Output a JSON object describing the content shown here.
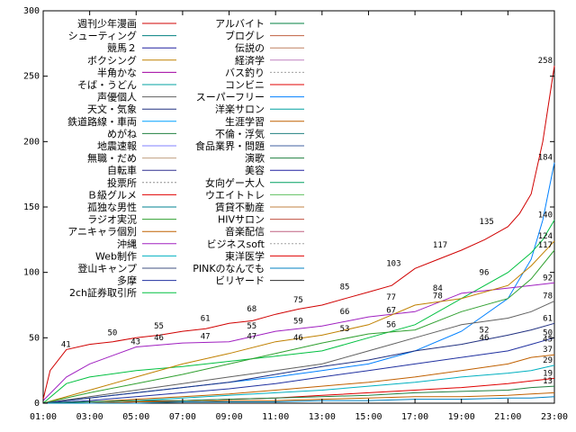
{
  "chart_data": {
    "type": "line",
    "title": "",
    "xlabel": "",
    "ylabel": "",
    "ylim": [
      0,
      300
    ],
    "xlim_hours": [
      1,
      23
    ],
    "x_ticks": [
      "01:00",
      "03:00",
      "05:00",
      "07:00",
      "09:00",
      "11:00",
      "13:00",
      "15:00",
      "17:00",
      "19:00",
      "21:00",
      "23:00"
    ],
    "y_ticks": [
      "0",
      "50",
      "100",
      "150",
      "200",
      "250",
      "300"
    ],
    "grid": false,
    "legend_position": "top-left, two columns",
    "legend_left": [
      {
        "name": "週刊少年漫画",
        "color": "#d00000",
        "dash": false
      },
      {
        "name": "シューティング",
        "color": "#008080",
        "dash": false
      },
      {
        "name": "競馬２",
        "color": "#2020a0",
        "dash": false
      },
      {
        "name": "ボクシング",
        "color": "#c08000",
        "dash": false
      },
      {
        "name": "半角かな",
        "color": "#a000a0",
        "dash": false
      },
      {
        "name": "そば・うどん",
        "color": "#00a0a0",
        "dash": false
      },
      {
        "name": "声優個人",
        "color": "#606060",
        "dash": false
      },
      {
        "name": "天文・気象",
        "color": "#203080",
        "dash": false
      },
      {
        "name": "鉄道路線・車両",
        "color": "#00a0ff",
        "dash": false
      },
      {
        "name": "めがね",
        "color": "#208040",
        "dash": false
      },
      {
        "name": "地震速報",
        "color": "#8080ff",
        "dash": false
      },
      {
        "name": "無職・だめ",
        "color": "#c0a080",
        "dash": false
      },
      {
        "name": "自転車",
        "color": "#303090",
        "dash": false
      },
      {
        "name": "投票所",
        "color": "#909090",
        "dash": true
      },
      {
        "name": "Ｂ級グルメ",
        "color": "#e00000",
        "dash": false
      },
      {
        "name": "孤独な男性",
        "color": "#008090",
        "dash": false
      },
      {
        "name": "ラジオ実況",
        "color": "#30a030",
        "dash": false
      },
      {
        "name": "アニキャラ個別",
        "color": "#c06000",
        "dash": false
      },
      {
        "name": "沖縄",
        "color": "#a020c0",
        "dash": false
      },
      {
        "name": "Web制作",
        "color": "#00b0c0",
        "dash": false
      },
      {
        "name": "登山キャンプ",
        "color": "#405080",
        "dash": false
      },
      {
        "name": "多摩",
        "color": "#2030a0",
        "dash": false
      },
      {
        "name": "2ch証券取引所",
        "color": "#00c040",
        "dash": false
      }
    ],
    "legend_right": [
      {
        "name": "アルバイト",
        "color": "#008040",
        "dash": false
      },
      {
        "name": "ブログレ",
        "color": "#c06040",
        "dash": false
      },
      {
        "name": "伝説の",
        "color": "#c08060",
        "dash": false
      },
      {
        "name": "経済学",
        "color": "#c080c0",
        "dash": false
      },
      {
        "name": "バス釣り",
        "color": "#a0a0a0",
        "dash": true
      },
      {
        "name": "コンビニ",
        "color": "#e00000",
        "dash": false
      },
      {
        "name": "スーパーフリー",
        "color": "#0080ff",
        "dash": false
      },
      {
        "name": "洋楽サロン",
        "color": "#00a0a0",
        "dash": false
      },
      {
        "name": "生涯学習",
        "color": "#c06000",
        "dash": false
      },
      {
        "name": "不倫・浮気",
        "color": "#208080",
        "dash": false
      },
      {
        "name": "食品業界・問題",
        "color": "#4060a0",
        "dash": false
      },
      {
        "name": "演歌",
        "color": "#208040",
        "dash": false
      },
      {
        "name": "美容",
        "color": "#2020a0",
        "dash": false
      },
      {
        "name": "女向ゲー大人",
        "color": "#00a060",
        "dash": false
      },
      {
        "name": "ウエイトトレ",
        "color": "#60c060",
        "dash": false
      },
      {
        "name": "賃貸不動産",
        "color": "#c08040",
        "dash": false
      },
      {
        "name": "HIVサロン",
        "color": "#c05040",
        "dash": false
      },
      {
        "name": "音楽配信",
        "color": "#c06080",
        "dash": false
      },
      {
        "name": "ビジネスsoft",
        "color": "#a0a0a0",
        "dash": true
      },
      {
        "name": "東洋医学",
        "color": "#e00000",
        "dash": false
      },
      {
        "name": "PINKのなんでも",
        "color": "#0080c0",
        "dash": false
      },
      {
        "name": "ビリヤード",
        "color": "#303030",
        "dash": false
      }
    ],
    "series": [
      {
        "name": "週刊少年漫画",
        "color": "#d00000",
        "x": [
          1,
          1.3,
          2,
          3,
          4,
          5,
          6,
          7,
          8,
          9,
          10,
          11,
          12,
          13,
          14,
          15,
          16,
          17,
          18,
          19,
          20,
          20.5,
          21,
          21.5,
          22,
          22.5,
          23
        ],
        "values": [
          3,
          25,
          41,
          45,
          47,
          50,
          52,
          55,
          57,
          61,
          63,
          68,
          72,
          75,
          80,
          85,
          90,
          103,
          110,
          117,
          125,
          130,
          135,
          145,
          160,
          200,
          258
        ]
      },
      {
        "name": "スーパーフリー",
        "color": "#0080ff",
        "x": [
          1,
          3,
          5,
          7,
          9,
          11,
          13,
          15,
          17,
          19,
          21,
          22,
          22.5,
          23
        ],
        "values": [
          0,
          4,
          8,
          12,
          16,
          20,
          25,
          30,
          40,
          55,
          80,
          110,
          140,
          184
        ]
      },
      {
        "name": "2ch証券取引所",
        "color": "#00c040",
        "x": [
          1,
          2,
          3,
          5,
          7,
          9,
          11,
          13,
          15,
          17,
          19,
          21,
          22,
          22.5,
          23
        ],
        "values": [
          0,
          15,
          20,
          25,
          28,
          32,
          36,
          40,
          50,
          60,
          80,
          100,
          115,
          125,
          140
        ]
      },
      {
        "name": "沖縄",
        "color": "#a020c0",
        "x": [
          1,
          2,
          3,
          5,
          7,
          9,
          11,
          13,
          15,
          17,
          19,
          21,
          22,
          23
        ],
        "values": [
          2,
          20,
          30,
          43,
          46,
          47,
          55,
          59,
          66,
          70,
          84,
          88,
          90,
          92
        ]
      },
      {
        "name": "ボクシング",
        "color": "#c08000",
        "x": [
          1,
          3,
          5,
          7,
          9,
          11,
          13,
          15,
          17,
          19,
          21,
          22,
          23
        ],
        "values": [
          0,
          10,
          20,
          30,
          38,
          47,
          52,
          60,
          75,
          80,
          90,
          105,
          124
        ]
      },
      {
        "name": "ラジオ実況",
        "color": "#30a030",
        "x": [
          1,
          3,
          5,
          7,
          9,
          11,
          13,
          15,
          17,
          19,
          21,
          22,
          23
        ],
        "values": [
          0,
          8,
          15,
          22,
          30,
          38,
          46,
          53,
          56,
          70,
          80,
          95,
          117
        ]
      },
      {
        "name": "声優個人",
        "color": "#606060",
        "x": [
          1,
          3,
          5,
          7,
          9,
          11,
          13,
          15,
          17,
          19,
          21,
          22,
          23
        ],
        "values": [
          0,
          5,
          10,
          15,
          20,
          25,
          30,
          40,
          50,
          60,
          65,
          70,
          78
        ]
      },
      {
        "name": "天文・気象",
        "color": "#203080",
        "x": [
          1,
          3,
          5,
          7,
          9,
          11,
          13,
          15,
          17,
          19,
          21,
          22,
          23
        ],
        "values": [
          0,
          4,
          8,
          12,
          16,
          22,
          28,
          33,
          40,
          45,
          52,
          56,
          61
        ]
      },
      {
        "name": "多摩",
        "color": "#2030a0",
        "x": [
          1,
          3,
          5,
          7,
          9,
          11,
          13,
          15,
          17,
          19,
          21,
          22,
          23
        ],
        "values": [
          0,
          2,
          5,
          8,
          11,
          15,
          20,
          25,
          30,
          35,
          40,
          45,
          50
        ]
      },
      {
        "name": "アニキャラ個別",
        "color": "#c06000",
        "x": [
          1,
          3,
          5,
          7,
          9,
          11,
          13,
          15,
          17,
          19,
          21,
          22,
          23
        ],
        "values": [
          0,
          1,
          3,
          5,
          7,
          10,
          13,
          16,
          20,
          25,
          30,
          35,
          37
        ]
      },
      {
        "name": "Web制作",
        "color": "#00b0c0",
        "x": [
          1,
          3,
          5,
          7,
          9,
          11,
          13,
          15,
          17,
          19,
          21,
          22,
          23
        ],
        "values": [
          0,
          1,
          2,
          4,
          6,
          8,
          10,
          13,
          16,
          20,
          23,
          25,
          29
        ]
      },
      {
        "name": "東洋医学",
        "color": "#e00000",
        "x": [
          1,
          3,
          5,
          7,
          9,
          11,
          13,
          15,
          17,
          19,
          21,
          22,
          23
        ],
        "values": [
          0,
          0,
          1,
          2,
          3,
          4,
          6,
          8,
          10,
          12,
          15,
          17,
          19
        ]
      },
      {
        "name": "めがね",
        "color": "#208040",
        "x": [
          1,
          3,
          5,
          7,
          9,
          11,
          13,
          15,
          17,
          19,
          21,
          22,
          23
        ],
        "values": [
          0,
          1,
          2,
          2,
          3,
          4,
          5,
          6,
          8,
          9,
          10,
          12,
          13
        ]
      },
      {
        "name": "生涯学習",
        "color": "#c06000",
        "x": [
          1,
          3,
          5,
          7,
          9,
          11,
          13,
          15,
          17,
          19,
          21,
          22,
          23
        ],
        "values": [
          0,
          0,
          1,
          1,
          2,
          2,
          3,
          4,
          5,
          5,
          6,
          7,
          8
        ]
      },
      {
        "name": "PINKのなんでも",
        "color": "#0080c0",
        "x": [
          1,
          3,
          5,
          7,
          9,
          11,
          13,
          15,
          17,
          19,
          21,
          22,
          23
        ],
        "values": [
          0,
          0,
          0,
          1,
          1,
          1,
          2,
          2,
          3,
          3,
          4,
          4,
          5
        ]
      }
    ],
    "data_labels": [
      {
        "x": 2,
        "y": 41,
        "text": "41"
      },
      {
        "x": 4,
        "y": 50,
        "text": "50"
      },
      {
        "x": 5,
        "y": 43,
        "text": "43"
      },
      {
        "x": 6,
        "y": 55,
        "text": "55"
      },
      {
        "x": 6,
        "y": 46,
        "text": "46"
      },
      {
        "x": 8,
        "y": 61,
        "text": "61"
      },
      {
        "x": 8,
        "y": 47,
        "text": "47"
      },
      {
        "x": 10,
        "y": 68,
        "text": "68"
      },
      {
        "x": 10,
        "y": 55,
        "text": "55"
      },
      {
        "x": 10,
        "y": 47,
        "text": "47"
      },
      {
        "x": 12,
        "y": 75,
        "text": "75"
      },
      {
        "x": 12,
        "y": 59,
        "text": "59"
      },
      {
        "x": 12,
        "y": 46,
        "text": "46"
      },
      {
        "x": 14,
        "y": 85,
        "text": "85"
      },
      {
        "x": 14,
        "y": 66,
        "text": "66"
      },
      {
        "x": 14,
        "y": 53,
        "text": "53"
      },
      {
        "x": 16,
        "y": 103,
        "text": "103"
      },
      {
        "x": 16,
        "y": 77,
        "text": "77"
      },
      {
        "x": 16,
        "y": 67,
        "text": "67"
      },
      {
        "x": 16,
        "y": 56,
        "text": "56"
      },
      {
        "x": 18,
        "y": 117,
        "text": "117"
      },
      {
        "x": 18,
        "y": 84,
        "text": "84"
      },
      {
        "x": 18,
        "y": 78,
        "text": "78"
      },
      {
        "x": 20,
        "y": 135,
        "text": "135"
      },
      {
        "x": 20,
        "y": 96,
        "text": "96"
      },
      {
        "x": 20,
        "y": 52,
        "text": "52"
      },
      {
        "x": 20,
        "y": 46,
        "text": "46"
      },
      {
        "x": 23,
        "y": 258,
        "text": "258"
      },
      {
        "x": 23,
        "y": 184,
        "text": "184"
      },
      {
        "x": 23,
        "y": 140,
        "text": "140"
      },
      {
        "x": 23,
        "y": 124,
        "text": "124"
      },
      {
        "x": 23,
        "y": 117,
        "text": "117"
      },
      {
        "x": 23,
        "y": 92,
        "text": "92"
      },
      {
        "x": 23,
        "y": 78,
        "text": "78"
      },
      {
        "x": 23,
        "y": 61,
        "text": "61"
      },
      {
        "x": 23,
        "y": 50,
        "text": "50"
      },
      {
        "x": 23,
        "y": 45,
        "text": "45"
      },
      {
        "x": 23,
        "y": 37,
        "text": "37"
      },
      {
        "x": 23,
        "y": 29,
        "text": "29"
      },
      {
        "x": 23,
        "y": 19,
        "text": "19"
      },
      {
        "x": 23,
        "y": 13,
        "text": "13"
      }
    ]
  }
}
